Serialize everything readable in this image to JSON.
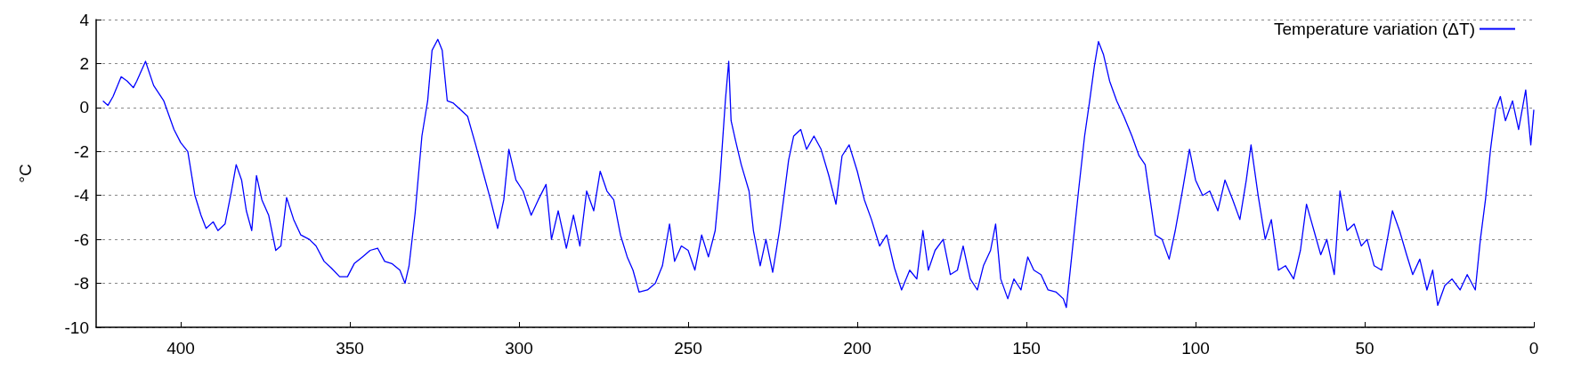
{
  "chart_data": {
    "type": "line",
    "ylabel": "°C",
    "xlim": [
      425,
      0
    ],
    "xticks": [
      400,
      350,
      300,
      250,
      200,
      150,
      100,
      50,
      0
    ],
    "ylim": [
      -10,
      4
    ],
    "yticks": [
      -10,
      -8,
      -6,
      -4,
      -2,
      0,
      2,
      4
    ],
    "grid": "y",
    "legend": "top right",
    "marker": "none",
    "line_style": "solid",
    "series": [
      {
        "name": "Temperature variation (ΔT)",
        "color": "#0000ff",
        "x": [
          423,
          421.5,
          420,
          417.6,
          415.8,
          414,
          413,
          410.4,
          408,
          405,
          402,
          400,
          397.9,
          395.8,
          394,
          392.5,
          390.4,
          389,
          386.9,
          385,
          383.6,
          382,
          380.6,
          379,
          377.6,
          376,
          374,
          371.9,
          370.4,
          368.7,
          366.6,
          364.5,
          362,
          360,
          357.6,
          355.5,
          353,
          350.7,
          348.7,
          346.3,
          344,
          341.8,
          339.7,
          337.6,
          335.2,
          333.7,
          332.5,
          330.7,
          328.7,
          327,
          325.7,
          324,
          322.7,
          321.2,
          319.4,
          317.3,
          315.2,
          312.8,
          310.7,
          308.4,
          306.3,
          304.5,
          303,
          300.9,
          298.8,
          296.4,
          294.3,
          292,
          290.4,
          288.4,
          286,
          283.9,
          282,
          280,
          277.9,
          276,
          274,
          272,
          270,
          268,
          266.3,
          264.5,
          262,
          259.7,
          257.6,
          255.5,
          254,
          252,
          250,
          248,
          246,
          244,
          242,
          240.6,
          239,
          238,
          237.3,
          236,
          234.3,
          232,
          230.7,
          228.7,
          227,
          225,
          223,
          221.8,
          220.3,
          218.8,
          216.7,
          215,
          212.8,
          210.7,
          208.4,
          206.3,
          204.5,
          202.4,
          200,
          197.9,
          195.8,
          193.4,
          191.3,
          189,
          186.9,
          184.5,
          182.4,
          180.6,
          179,
          177,
          174.6,
          172.5,
          170.4,
          168.7,
          166.6,
          164.5,
          162.7,
          160.6,
          159.1,
          157.6,
          155.5,
          153.7,
          151.6,
          149.6,
          147.8,
          145.7,
          143.6,
          141.2,
          139.1,
          138.2,
          136.7,
          134.6,
          132.8,
          131.3,
          129.9,
          128.7,
          127.2,
          125.4,
          123.3,
          121.2,
          118.8,
          116.7,
          114.9,
          113.4,
          111.9,
          109.9,
          107.8,
          106,
          103.9,
          101.8,
          100,
          97.9,
          95.8,
          93.4,
          91.3,
          89,
          86.9,
          85,
          83.6,
          81.5,
          79.4,
          77.6,
          75.5,
          73.4,
          71,
          69,
          67.2,
          65,
          63,
          61.2,
          59,
          57.3,
          55.2,
          53.1,
          51,
          49.3,
          47.2,
          45,
          43.3,
          41.8,
          39.7,
          37.6,
          35.8,
          33.7,
          31.6,
          29.9,
          28.4,
          26.3,
          24.2,
          21.8,
          19.7,
          17.3,
          15.8,
          14.3,
          12.8,
          11.3,
          9.9,
          8.4,
          6.3,
          4.5,
          2.4,
          0.9,
          0
        ],
        "values": [
          0.3,
          0.1,
          0.5,
          1.4,
          1.2,
          0.9,
          1.2,
          2.1,
          1.0,
          0.3,
          -1.0,
          -1.6,
          -2.0,
          -4.0,
          -4.9,
          -5.5,
          -5.2,
          -5.6,
          -5.3,
          -3.8,
          -2.6,
          -3.3,
          -4.7,
          -5.6,
          -3.1,
          -4.2,
          -4.9,
          -6.5,
          -6.3,
          -4.1,
          -5.1,
          -5.8,
          -6.0,
          -6.3,
          -7.0,
          -7.3,
          -7.7,
          -7.7,
          -7.1,
          -6.8,
          -6.5,
          -6.4,
          -7.0,
          -7.1,
          -7.4,
          -8.0,
          -7.2,
          -4.8,
          -1.3,
          0.3,
          2.6,
          3.1,
          2.6,
          0.3,
          0.2,
          -0.1,
          -0.4,
          -1.7,
          -2.9,
          -4.2,
          -5.5,
          -4.2,
          -1.9,
          -3.3,
          -3.8,
          -4.9,
          -4.2,
          -3.5,
          -6.0,
          -4.7,
          -6.4,
          -4.9,
          -6.3,
          -3.8,
          -4.7,
          -2.9,
          -3.8,
          -4.2,
          -5.8,
          -6.8,
          -7.4,
          -8.4,
          -8.3,
          -8.0,
          -7.2,
          -5.3,
          -7.0,
          -6.3,
          -6.5,
          -7.4,
          -5.8,
          -6.8,
          -5.6,
          -3.3,
          0.3,
          2.1,
          -0.6,
          -1.5,
          -2.6,
          -3.8,
          -5.6,
          -7.2,
          -6.0,
          -7.5,
          -5.6,
          -4.2,
          -2.4,
          -1.3,
          -1.0,
          -1.9,
          -1.3,
          -1.9,
          -3.1,
          -4.4,
          -2.2,
          -1.7,
          -2.9,
          -4.2,
          -5.1,
          -6.3,
          -5.8,
          -7.3,
          -8.3,
          -7.4,
          -7.8,
          -5.6,
          -7.4,
          -6.5,
          -6.0,
          -7.6,
          -7.4,
          -6.3,
          -7.8,
          -8.3,
          -7.2,
          -6.5,
          -5.3,
          -7.8,
          -8.7,
          -7.8,
          -8.3,
          -6.8,
          -7.4,
          -7.6,
          -8.3,
          -8.4,
          -8.7,
          -9.1,
          -6.9,
          -3.8,
          -1.3,
          0.3,
          1.9,
          3.0,
          2.4,
          1.2,
          0.3,
          -0.4,
          -1.3,
          -2.2,
          -2.6,
          -4.2,
          -5.8,
          -6.0,
          -6.9,
          -5.6,
          -3.8,
          -1.9,
          -3.3,
          -4.0,
          -3.8,
          -4.7,
          -3.3,
          -4.2,
          -5.1,
          -3.3,
          -1.7,
          -4.0,
          -6.0,
          -5.1,
          -7.4,
          -7.2,
          -7.8,
          -6.5,
          -4.4,
          -5.6,
          -6.7,
          -6.0,
          -7.6,
          -3.8,
          -5.6,
          -5.3,
          -6.3,
          -6.0,
          -7.2,
          -7.4,
          -6.0,
          -4.7,
          -5.6,
          -6.7,
          -7.6,
          -6.9,
          -8.3,
          -7.4,
          -9.0,
          -8.1,
          -7.8,
          -8.3,
          -7.6,
          -8.3,
          -6.0,
          -4.2,
          -1.9,
          -0.1,
          0.5,
          -0.6,
          0.3,
          -1.0,
          0.8,
          -1.7,
          -0.1
        ]
      }
    ]
  }
}
